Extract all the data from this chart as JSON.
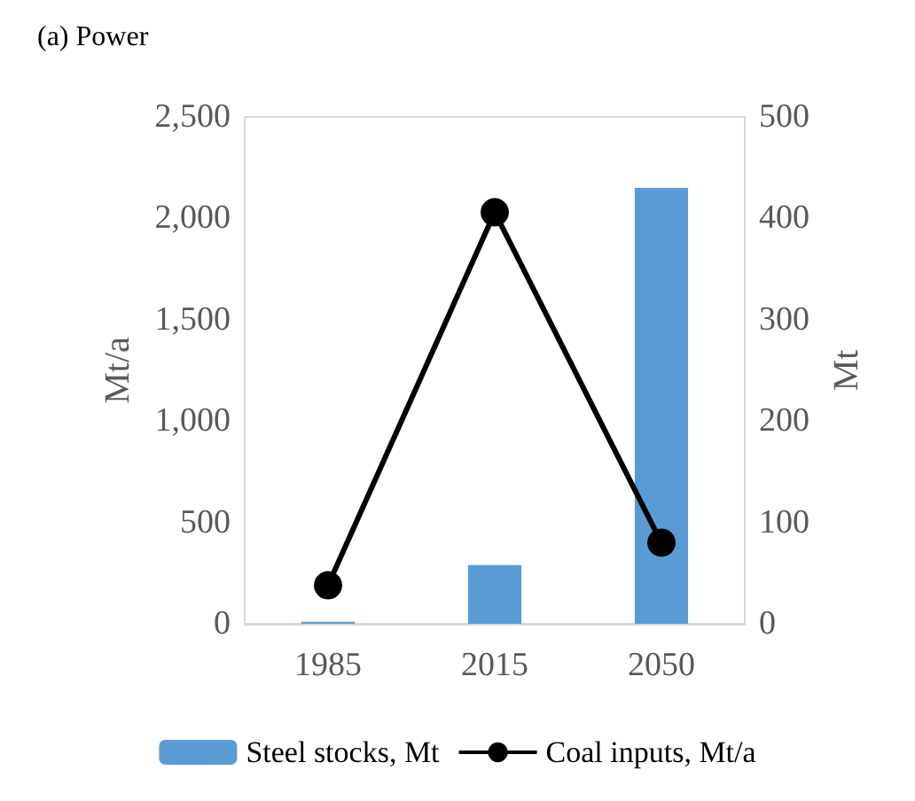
{
  "chart_data": {
    "type": "bar",
    "title": "(a) Power",
    "categories": [
      "1985",
      "2015",
      "2050"
    ],
    "ylabel": "Mt/a",
    "y2label": "Mt",
    "series": [
      {
        "name": "Steel stocks, Mt",
        "axis": "y2",
        "color": "#5b9bd5",
        "values": [
          2,
          58,
          430
        ]
      },
      {
        "name": "Coal inputs, Mt/a",
        "type": "line",
        "color": "#000000",
        "marker": "circle",
        "values": [
          190,
          2030,
          400
        ]
      }
    ],
    "ylim": [
      0,
      2500
    ],
    "yticks": [
      0,
      500,
      {
        "value": 1000,
        "label": "1,000"
      },
      {
        "value": 1500,
        "label": "1,500"
      },
      {
        "value": 2000,
        "label": "2,000"
      },
      {
        "value": 2500,
        "label": "2,500"
      }
    ],
    "y2lim": [
      0,
      500
    ],
    "y2ticks": [
      0,
      100,
      200,
      300,
      400,
      500
    ],
    "grid": false,
    "legend": "bottom"
  }
}
